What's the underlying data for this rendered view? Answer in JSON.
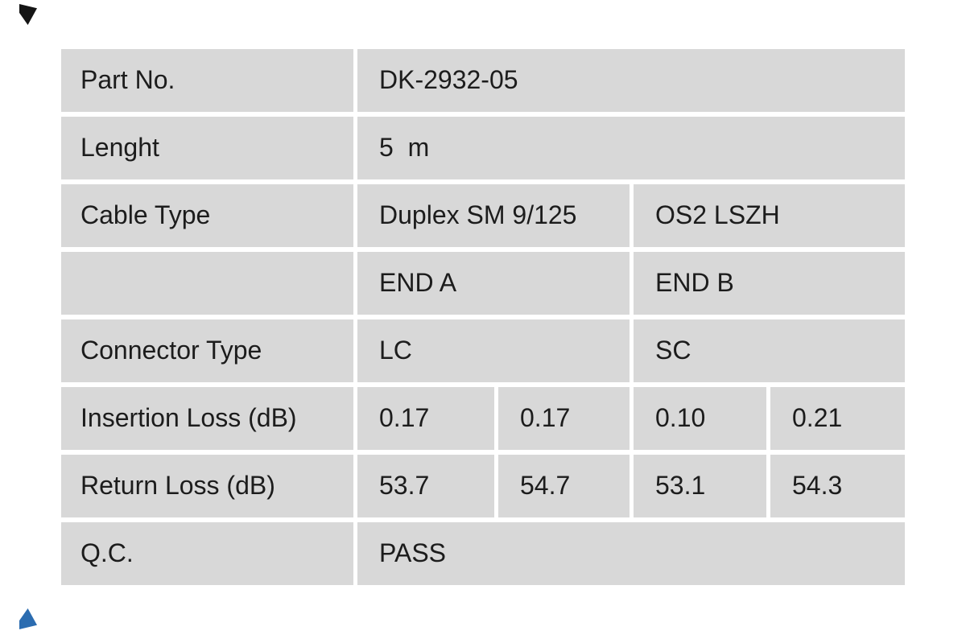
{
  "colors": {
    "page_bg": "#ffffff",
    "cell_bg": "#d8d8d8",
    "text_color": "#1c1c1c",
    "mark_top_color": "#151515",
    "mark_bottom_color": "#2b6cb0"
  },
  "chart_data": {
    "type": "table",
    "rows": [
      [
        "Part No.",
        "DK-2932-05"
      ],
      [
        "Lenght",
        "5  m"
      ],
      [
        "Cable Type",
        "Duplex SM 9/125",
        "OS2 LSZH"
      ],
      [
        "",
        "END A",
        "END B"
      ],
      [
        "Connector Type",
        "LC",
        "SC"
      ],
      [
        "Insertion Loss (dB)",
        "0.17",
        "0.17",
        "0.10",
        "0.21"
      ],
      [
        "Return Loss (dB)",
        "53.7",
        "54.7",
        "53.1",
        "54.3"
      ],
      [
        "Q.C.",
        "PASS"
      ]
    ]
  },
  "table": {
    "rows": [
      {
        "label": "Part No.",
        "cells": [
          {
            "text": "DK-2932-05"
          }
        ]
      },
      {
        "label": "Lenght",
        "cells": [
          {
            "text": "5  m"
          }
        ]
      },
      {
        "label": "Cable Type",
        "cells": [
          {
            "text": "Duplex SM 9/125"
          },
          {
            "text": "OS2 LSZH"
          }
        ]
      },
      {
        "label": "",
        "cells": [
          {
            "text": "END A"
          },
          {
            "text": "END B"
          }
        ]
      },
      {
        "label": "Connector Type",
        "cells": [
          {
            "text": "LC"
          },
          {
            "text": "SC"
          }
        ]
      },
      {
        "label": "Insertion Loss (dB)",
        "cells": [
          {
            "text": "0.17"
          },
          {
            "text": "0.17"
          },
          {
            "text": "0.10"
          },
          {
            "text": "0.21"
          }
        ]
      },
      {
        "label": "Return Loss (dB)",
        "cells": [
          {
            "text": "53.7"
          },
          {
            "text": "54.7"
          },
          {
            "text": "53.1"
          },
          {
            "text": "54.3"
          }
        ]
      },
      {
        "label": "Q.C.",
        "cells": [
          {
            "text": "PASS"
          }
        ]
      }
    ]
  }
}
